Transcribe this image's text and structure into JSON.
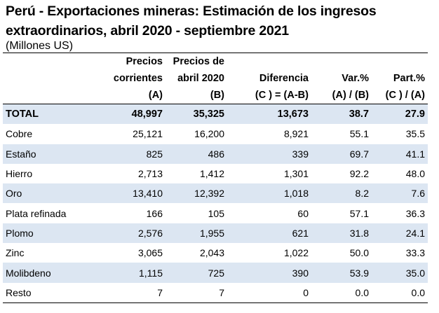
{
  "title": "Perú - Exportaciones mineras: Estimación de los ingresos extraordinarios, abril 2020 - septiembre 2021",
  "subtitle": "(Millones US)",
  "headers": [
    [
      "",
      "Precios",
      "Precios de",
      "",
      "",
      ""
    ],
    [
      "",
      "corrientes",
      "abril 2020",
      "Diferencia",
      "Var.%",
      "Part.%"
    ],
    [
      "",
      "(A)",
      "(B)",
      "(C ) = (A-B)",
      "(A) / (B)",
      "(C ) / (A)"
    ]
  ],
  "rows": [
    {
      "name": "TOTAL",
      "a": "48,997",
      "b": "35,325",
      "c": "13,673",
      "var": "38.7",
      "part": "27.9"
    },
    {
      "name": "Cobre",
      "a": "25,121",
      "b": "16,200",
      "c": "8,921",
      "var": "55.1",
      "part": "35.5"
    },
    {
      "name": "Estaño",
      "a": "825",
      "b": "486",
      "c": "339",
      "var": "69.7",
      "part": "41.1"
    },
    {
      "name": "Hierro",
      "a": "2,713",
      "b": "1,412",
      "c": "1,301",
      "var": "92.2",
      "part": "48.0"
    },
    {
      "name": "Oro",
      "a": "13,410",
      "b": "12,392",
      "c": "1,018",
      "var": "8.2",
      "part": "7.6"
    },
    {
      "name": "Plata refinada",
      "a": "166",
      "b": "105",
      "c": "60",
      "var": "57.1",
      "part": "36.3"
    },
    {
      "name": "Plomo",
      "a": "2,576",
      "b": "1,955",
      "c": "621",
      "var": "31.8",
      "part": "24.1"
    },
    {
      "name": "Zinc",
      "a": "3,065",
      "b": "2,043",
      "c": "1,022",
      "var": "50.0",
      "part": "33.3"
    },
    {
      "name": "Molibdeno",
      "a": "1,115",
      "b": "725",
      "c": "390",
      "var": "53.9",
      "part": "35.0"
    },
    {
      "name": "Resto",
      "a": "7",
      "b": "7",
      "c": "0",
      "var": "0.0",
      "part": "0.0"
    }
  ]
}
